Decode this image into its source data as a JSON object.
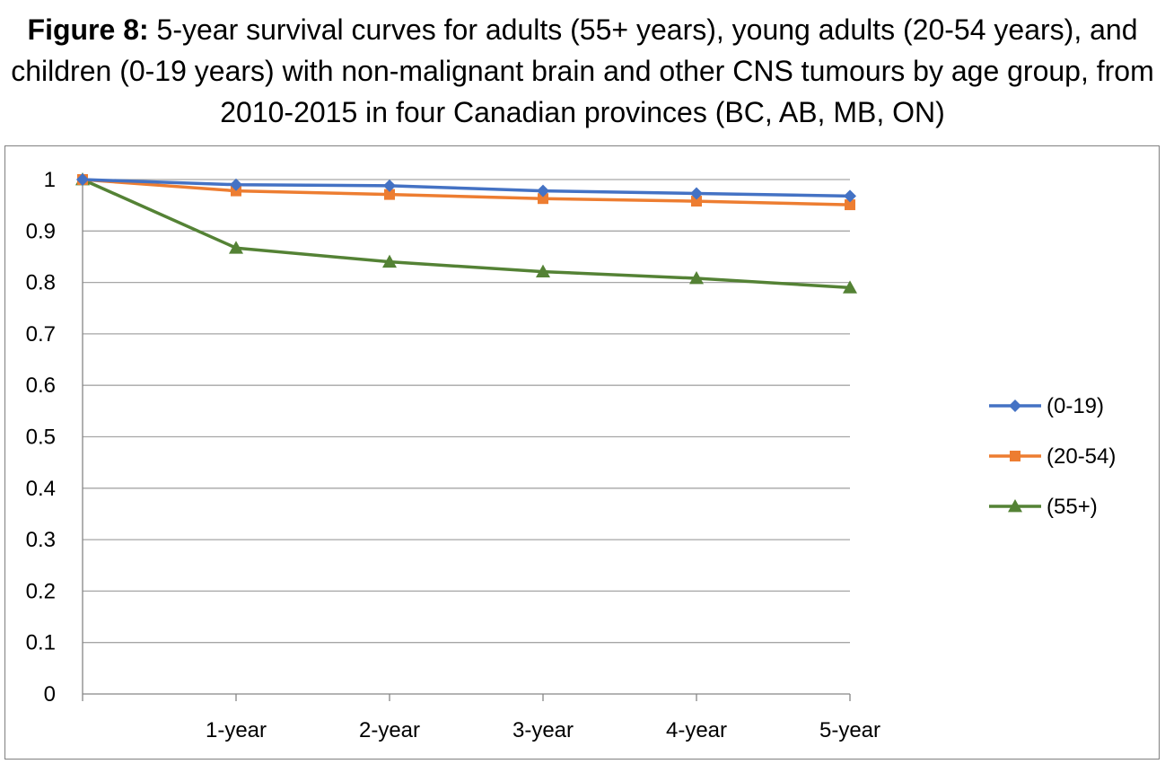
{
  "figure": {
    "prefix": "Figure 8:",
    "title": "5-year survival curves for adults (55+ years), young adults (20-54 years), and children (0-19 years) with non-malignant brain and other CNS tumours by age group, from 2010-2015 in four Canadian provinces (BC, AB, MB, ON)"
  },
  "chart_data": {
    "type": "line",
    "categories": [
      "",
      "1-year",
      "2-year",
      "3-year",
      "4-year",
      "5-year"
    ],
    "ylim": [
      0,
      1
    ],
    "yticks": [
      "0",
      "0.1",
      "0.2",
      "0.3",
      "0.4",
      "0.5",
      "0.6",
      "0.7",
      "0.8",
      "0.9",
      "1"
    ],
    "grid": true,
    "legend_position": "right",
    "series": [
      {
        "name": "(0-19)",
        "color": "#4472C4",
        "marker": "diamond",
        "values": [
          1.0,
          0.99,
          0.988,
          0.978,
          0.973,
          0.968
        ]
      },
      {
        "name": "(20-54)",
        "color": "#ED7D31",
        "marker": "square",
        "values": [
          1.0,
          0.978,
          0.971,
          0.963,
          0.958,
          0.951
        ]
      },
      {
        "name": "(55+)",
        "color": "#548235",
        "marker": "triangle",
        "values": [
          1.0,
          0.867,
          0.84,
          0.821,
          0.808,
          0.79
        ]
      }
    ]
  }
}
